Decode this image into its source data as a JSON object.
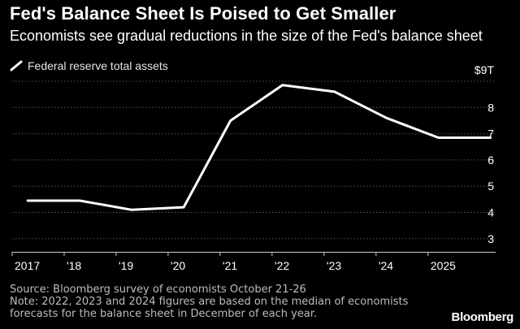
{
  "header": {
    "title": "Fed's Balance Sheet Is Poised to Get Smaller",
    "subtitle": "Economists see gradual reductions in the size of the Fed's balance sheet"
  },
  "legend": {
    "label": "Federal reserve total assets"
  },
  "colors": {
    "background": "#000000",
    "line": "#ffffff",
    "grid": "#555555",
    "text": "#ffffff",
    "muted": "#bdbdbd"
  },
  "chart_data": {
    "type": "line",
    "title": "Fed's Balance Sheet Is Poised to Get Smaller",
    "subtitle": "Economists see gradual reductions in the size of the Fed's balance sheet",
    "xlabel": "",
    "ylabel": "",
    "y_unit_label": "$9T",
    "grid": true,
    "legend_placement": "top-left",
    "x_tick_labels": [
      "2017",
      "'18",
      "'19",
      "'20",
      "'21",
      "'22",
      "'23",
      "'24",
      "2025"
    ],
    "x_tick_values": [
      2017,
      2018,
      2019,
      2020,
      2021,
      2022,
      2023,
      2024,
      2025
    ],
    "y_tick_labels": [
      "3",
      "4",
      "5",
      "6",
      "7",
      "8"
    ],
    "y_tick_values": [
      3,
      4,
      5,
      6,
      7,
      8
    ],
    "xlim": [
      2017,
      2026.3
    ],
    "ylim": [
      2.5,
      9
    ],
    "series": [
      {
        "name": "Federal reserve total assets",
        "x": [
          2017.3,
          2018.3,
          2019.3,
          2020.3,
          2021.2,
          2022.2,
          2023.2,
          2024.2,
          2025.2,
          2026.2
        ],
        "values": [
          4.45,
          4.45,
          4.1,
          4.2,
          7.5,
          8.85,
          8.6,
          7.6,
          6.85,
          6.85
        ]
      }
    ]
  },
  "footnote": {
    "source": "Source: Bloomberg survey of economists October 21-26",
    "note_line1": "Note: 2022, 2023 and 2024 figures are based on the median of economists",
    "note_line2": "forecasts for the balance sheet in December of each year."
  },
  "branding": {
    "logo_text": "Bloomberg"
  }
}
